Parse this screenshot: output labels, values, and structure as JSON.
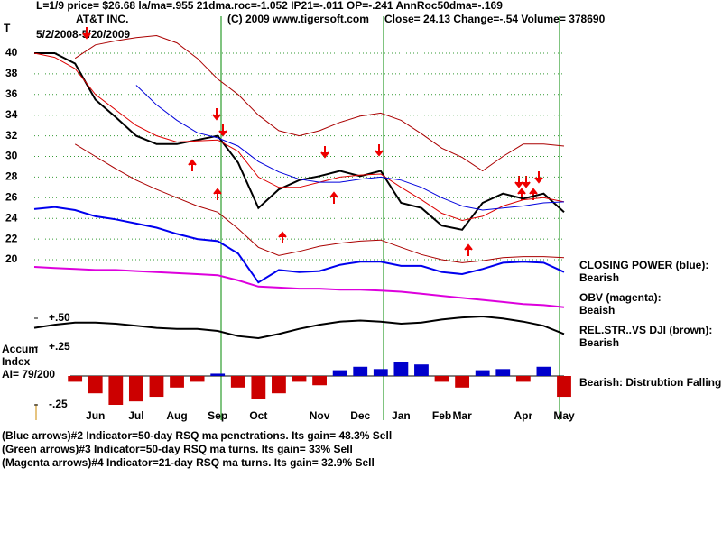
{
  "chart_data": {
    "type": "line",
    "header": "L=1/9  price= $26.68 la/ma=.955 21dma.roc=-1.052 IP21=-.011 OP=-.241 AnnRoc50dma=-.169",
    "ticker": "T",
    "title": "AT&T INC.",
    "copyright": "(C) 2009 www.tigersoft.com",
    "quote": "Close=  24.13   Change=-.54 Volume=  378690",
    "subtitle": "5/2/2008-5/20/2009",
    "left_labels": [
      "Accum",
      "Index",
      "AI= 79/200"
    ],
    "annotations": [
      "CLOSING POWER (blue):",
      "Bearish",
      "OBV (magenta):",
      "Beaish",
      "REL.STR..VS DJI (brown):",
      "Bearish",
      "Bearish:  Distrubtion Falling."
    ],
    "notes": [
      "(Blue arrows)#2 Indicator=50-day RSQ ma penetrations.  Its gain= 48.3% Sell",
      "(Green arrows)#3 Indicator=50-day RSQ ma turns.  Its gain= 33% Sell",
      "(Magenta arrows)#4 Indicator=21-day RSQ ma turns.  Its gain= 32.9% Sell"
    ],
    "categories": [
      null,
      null,
      null,
      "Jun",
      null,
      "Jul",
      null,
      "Aug",
      null,
      "Sep",
      null,
      "Oct",
      null,
      null,
      "Nov",
      null,
      "Dec",
      null,
      "Jan",
      null,
      "Feb",
      "Mar",
      null,
      null,
      "Apr",
      null,
      "May"
    ],
    "ylim": [
      4.54,
      44.28
    ],
    "yticks": [
      20,
      22,
      24,
      26,
      28,
      30,
      32,
      34,
      36,
      38,
      40
    ],
    "y2lim": [
      -0.375,
      3.18
    ],
    "y2ticks": [
      {
        "value": 0.5,
        "label": "+.50"
      },
      {
        "value": 0.25,
        "label": "+.25"
      },
      {
        "value": -0.25,
        "label": "-.25"
      }
    ],
    "grid": true,
    "grid_color": "#339933",
    "series": [
      {
        "name": "Price",
        "color": "#000000",
        "values": [
          40,
          40,
          39,
          35.5,
          33.8,
          32,
          31.2,
          31.2,
          31.6,
          32,
          29.4,
          25,
          26.8,
          27.7,
          28.1,
          28.6,
          28.1,
          28.6,
          25.5,
          25,
          23.3,
          22.9,
          25.5,
          26.4,
          25.9,
          26.4,
          24.6
        ]
      },
      {
        "name": "21-day MA",
        "color": "#dd0000",
        "values": [
          40,
          39.6,
          38.5,
          36,
          34.5,
          33,
          32,
          31.4,
          31.5,
          31.6,
          30.5,
          28,
          27,
          27,
          27.5,
          28,
          28.2,
          28.3,
          27,
          25.8,
          24.5,
          23.8,
          24.2,
          25.2,
          25.8,
          26,
          25.6
        ]
      },
      {
        "name": "50-day MA",
        "color": "#0000dd",
        "values": [
          null,
          null,
          null,
          null,
          null,
          36.9,
          35,
          33.5,
          32.3,
          31.8,
          31,
          29.5,
          28.5,
          27.8,
          27.5,
          27.5,
          27.8,
          28,
          27.7,
          27,
          26,
          25.2,
          24.8,
          25,
          25.2,
          25.5,
          25.6
        ]
      },
      {
        "name": "Upper band",
        "color": "#aa0000",
        "values": [
          null,
          null,
          39.5,
          40.8,
          41.2,
          41.5,
          41.7,
          41,
          39.5,
          37.5,
          36,
          34,
          32.5,
          32,
          32.5,
          33.3,
          33.9,
          34.2,
          33.5,
          32.2,
          30.8,
          29.9,
          28.6,
          30,
          31.2,
          31.2,
          31
        ]
      },
      {
        "name": "Lower band",
        "color": "#aa0000",
        "values": [
          null,
          null,
          31.2,
          30,
          28.8,
          27.7,
          26.8,
          26,
          25.2,
          24.6,
          23,
          21.2,
          20.4,
          20.8,
          21.3,
          21.6,
          21.8,
          21.9,
          21.2,
          20.5,
          20,
          19.7,
          19.9,
          20.2,
          20.3,
          20.3,
          20.2
        ]
      },
      {
        "name": "Closing Power",
        "color": "#0000ee",
        "values": [
          24.9,
          25.1,
          24.8,
          24.2,
          23.9,
          23.5,
          23.1,
          22.5,
          22,
          21.8,
          20.6,
          17.8,
          19,
          18.8,
          18.9,
          19.5,
          19.8,
          19.8,
          19.4,
          19.4,
          18.8,
          18.6,
          19.1,
          19.7,
          19.8,
          19.7,
          18.8
        ]
      },
      {
        "name": "OBV",
        "color": "#dd00dd",
        "values": [
          19.3,
          19.2,
          19.1,
          19,
          19,
          18.9,
          18.8,
          18.7,
          18.6,
          18.5,
          18,
          17.4,
          17.3,
          17.2,
          17.2,
          17.1,
          17.1,
          17,
          16.9,
          16.7,
          16.5,
          16.3,
          16.1,
          15.9,
          15.7,
          15.6,
          15.4
        ]
      },
      {
        "name": "Rel. Str. vs DJI",
        "color": "#000000",
        "values": [
          13.4,
          13.7,
          13.9,
          13.9,
          13.8,
          13.6,
          13.4,
          13.3,
          13.3,
          13.1,
          12.6,
          12.4,
          12.8,
          13.3,
          13.7,
          14,
          14.1,
          14,
          13.8,
          13.9,
          14.2,
          14.4,
          14.5,
          14.3,
          14,
          13.6,
          12.8
        ]
      },
      {
        "name": "Accum Index",
        "type": "bar",
        "axis": "y2",
        "color": "#cc0000",
        "up_color": "#0000cc",
        "values": [
          null,
          null,
          -0.05,
          -0.15,
          -0.25,
          -0.22,
          -0.18,
          -0.1,
          -0.05,
          0.02,
          -0.1,
          -0.2,
          -0.15,
          -0.05,
          -0.08,
          0.05,
          0.08,
          0.06,
          0.12,
          0.1,
          -0.05,
          -0.1,
          0.05,
          0.06,
          -0.05,
          0.08,
          -0.18
        ]
      }
    ]
  }
}
